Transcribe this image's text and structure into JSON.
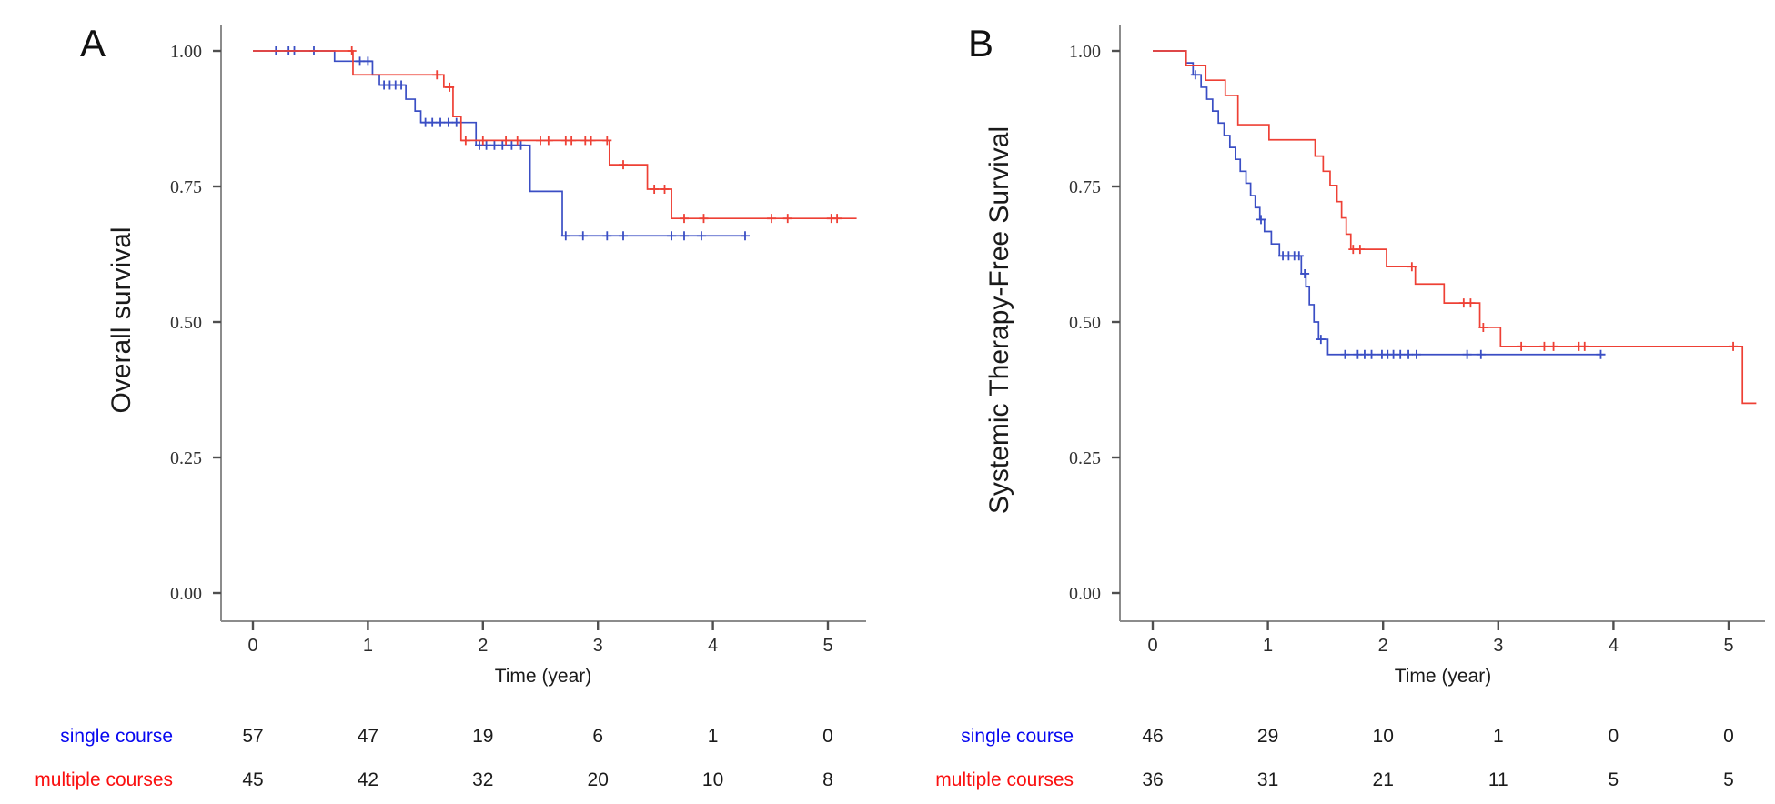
{
  "figure_colors": {
    "single_course_curve": "#3a4ec4",
    "multiple_courses_curve": "#ee4035",
    "single_course_label": "#0808f0",
    "multiple_courses_label": "#fa0f0f",
    "axis_line": "#8c8c8c",
    "tick_mark": "#4f4f4f"
  },
  "chart_data": [
    {
      "type": "line",
      "subtype": "kaplan-meier-step",
      "panel_label": "A",
      "ylabel": "Overall survival",
      "xlabel": "Time (year)",
      "xlim": [
        0,
        5.3
      ],
      "ylim": [
        0.0,
        1.0
      ],
      "x_ticks": [
        0,
        1,
        2,
        3,
        4,
        5
      ],
      "x_tick_labels": [
        "0",
        "1",
        "2",
        "3",
        "4",
        "5"
      ],
      "y_ticks": [
        1.0,
        0.75,
        0.5,
        0.25,
        0.0
      ],
      "y_tick_labels": [
        "1.00",
        "0.75",
        "0.50",
        "0.25",
        "0.00"
      ],
      "grid": false,
      "legend": "none",
      "series": [
        {
          "name": "single course",
          "color": "#3a4ec4",
          "steps": [
            [
              0,
              1.0
            ],
            [
              0.71,
              0.981
            ],
            [
              1.04,
              0.956
            ],
            [
              1.1,
              0.937
            ],
            [
              1.33,
              0.911
            ],
            [
              1.41,
              0.889
            ],
            [
              1.46,
              0.868
            ],
            [
              1.94,
              0.826
            ],
            [
              2.41,
              0.741
            ],
            [
              2.69,
              0.659
            ]
          ],
          "end_time": 4.28,
          "censors": [
            [
              0.2,
              1.0
            ],
            [
              0.31,
              1.0
            ],
            [
              0.36,
              1.0
            ],
            [
              0.53,
              1.0
            ],
            [
              0.93,
              0.981
            ],
            [
              1.0,
              0.981
            ],
            [
              1.14,
              0.937
            ],
            [
              1.19,
              0.937
            ],
            [
              1.24,
              0.937
            ],
            [
              1.29,
              0.937
            ],
            [
              1.5,
              0.868
            ],
            [
              1.56,
              0.868
            ],
            [
              1.63,
              0.868
            ],
            [
              1.7,
              0.868
            ],
            [
              1.77,
              0.868
            ],
            [
              1.97,
              0.826
            ],
            [
              2.03,
              0.826
            ],
            [
              2.1,
              0.826
            ],
            [
              2.17,
              0.826
            ],
            [
              2.25,
              0.826
            ],
            [
              2.33,
              0.826
            ],
            [
              2.72,
              0.659
            ],
            [
              2.87,
              0.659
            ],
            [
              3.08,
              0.659
            ],
            [
              3.22,
              0.659
            ],
            [
              3.64,
              0.659
            ],
            [
              3.75,
              0.659
            ],
            [
              3.9,
              0.659
            ],
            [
              4.28,
              0.659
            ]
          ]
        },
        {
          "name": "multiple courses",
          "color": "#ee4035",
          "steps": [
            [
              0,
              1.0
            ],
            [
              0.87,
              0.956
            ],
            [
              1.66,
              0.933
            ],
            [
              1.74,
              0.879
            ],
            [
              1.81,
              0.835
            ],
            [
              3.1,
              0.79
            ],
            [
              3.43,
              0.745
            ],
            [
              3.64,
              0.691
            ]
          ],
          "end_time": 5.25,
          "censors": [
            [
              0.86,
              1.0
            ],
            [
              1.6,
              0.956
            ],
            [
              1.71,
              0.933
            ],
            [
              1.85,
              0.835
            ],
            [
              2.0,
              0.835
            ],
            [
              2.2,
              0.835
            ],
            [
              2.3,
              0.835
            ],
            [
              2.5,
              0.835
            ],
            [
              2.57,
              0.835
            ],
            [
              2.72,
              0.835
            ],
            [
              2.77,
              0.835
            ],
            [
              2.89,
              0.835
            ],
            [
              2.94,
              0.835
            ],
            [
              3.08,
              0.835
            ],
            [
              3.22,
              0.79
            ],
            [
              3.49,
              0.745
            ],
            [
              3.58,
              0.745
            ],
            [
              3.75,
              0.691
            ],
            [
              3.92,
              0.691
            ],
            [
              4.51,
              0.691
            ],
            [
              4.65,
              0.691
            ],
            [
              5.03,
              0.691
            ],
            [
              5.08,
              0.691
            ]
          ]
        }
      ],
      "risk_table": {
        "rows": [
          {
            "label": "single course",
            "color": "#0808f0",
            "values": [
              "57",
              "47",
              "19",
              "6",
              "1",
              "0"
            ]
          },
          {
            "label": "multiple courses",
            "color": "#fa0f0f",
            "values": [
              "45",
              "42",
              "32",
              "20",
              "10",
              "8"
            ]
          }
        ]
      }
    },
    {
      "type": "line",
      "subtype": "kaplan-meier-step",
      "panel_label": "B",
      "ylabel": "Systemic Therapy-Free Survival",
      "xlabel": "Time (year)",
      "xlim": [
        0,
        5.3
      ],
      "ylim": [
        0.0,
        1.0
      ],
      "x_ticks": [
        0,
        1,
        2,
        3,
        4,
        5
      ],
      "x_tick_labels": [
        "0",
        "1",
        "2",
        "3",
        "4",
        "5"
      ],
      "y_ticks": [
        1.0,
        0.75,
        0.5,
        0.25,
        0.0
      ],
      "y_tick_labels": [
        "1.00",
        "0.75",
        "0.50",
        "0.25",
        "0.00"
      ],
      "grid": false,
      "legend": "none",
      "series": [
        {
          "name": "single course",
          "color": "#3a4ec4",
          "steps": [
            [
              0,
              1.0
            ],
            [
              0.29,
              0.978
            ],
            [
              0.35,
              0.956
            ],
            [
              0.42,
              0.933
            ],
            [
              0.47,
              0.911
            ],
            [
              0.52,
              0.889
            ],
            [
              0.57,
              0.867
            ],
            [
              0.62,
              0.844
            ],
            [
              0.67,
              0.822
            ],
            [
              0.72,
              0.8
            ],
            [
              0.76,
              0.778
            ],
            [
              0.81,
              0.756
            ],
            [
              0.85,
              0.733
            ],
            [
              0.89,
              0.711
            ],
            [
              0.93,
              0.689
            ],
            [
              0.97,
              0.667
            ],
            [
              1.03,
              0.644
            ],
            [
              1.1,
              0.622
            ],
            [
              1.29,
              0.589
            ],
            [
              1.33,
              0.565
            ],
            [
              1.36,
              0.532
            ],
            [
              1.4,
              0.5
            ],
            [
              1.44,
              0.468
            ],
            [
              1.52,
              0.44
            ]
          ],
          "end_time": 3.93,
          "censors": [
            [
              0.37,
              0.956
            ],
            [
              0.94,
              0.689
            ],
            [
              1.13,
              0.622
            ],
            [
              1.18,
              0.622
            ],
            [
              1.23,
              0.622
            ],
            [
              1.27,
              0.622
            ],
            [
              1.32,
              0.589
            ],
            [
              1.46,
              0.468
            ],
            [
              1.67,
              0.44
            ],
            [
              1.78,
              0.44
            ],
            [
              1.84,
              0.44
            ],
            [
              1.9,
              0.44
            ],
            [
              1.99,
              0.44
            ],
            [
              2.04,
              0.44
            ],
            [
              2.09,
              0.44
            ],
            [
              2.15,
              0.44
            ],
            [
              2.22,
              0.44
            ],
            [
              2.29,
              0.44
            ],
            [
              2.73,
              0.44
            ],
            [
              2.85,
              0.44
            ],
            [
              3.89,
              0.44
            ]
          ]
        },
        {
          "name": "multiple courses",
          "color": "#ee4035",
          "steps": [
            [
              0,
              1.0
            ],
            [
              0.29,
              0.973
            ],
            [
              0.46,
              0.946
            ],
            [
              0.63,
              0.918
            ],
            [
              0.74,
              0.864
            ],
            [
              1.01,
              0.836
            ],
            [
              1.41,
              0.806
            ],
            [
              1.48,
              0.778
            ],
            [
              1.54,
              0.752
            ],
            [
              1.6,
              0.722
            ],
            [
              1.64,
              0.692
            ],
            [
              1.68,
              0.662
            ],
            [
              1.72,
              0.634
            ],
            [
              2.03,
              0.602
            ],
            [
              2.28,
              0.57
            ],
            [
              2.53,
              0.535
            ],
            [
              2.84,
              0.49
            ],
            [
              3.02,
              0.455
            ],
            [
              5.12,
              0.35
            ]
          ],
          "end_time": 5.24,
          "censors": [
            [
              1.74,
              0.634
            ],
            [
              1.8,
              0.634
            ],
            [
              2.25,
              0.602
            ],
            [
              2.7,
              0.535
            ],
            [
              2.76,
              0.535
            ],
            [
              2.87,
              0.49
            ],
            [
              3.2,
              0.455
            ],
            [
              3.4,
              0.455
            ],
            [
              3.48,
              0.455
            ],
            [
              3.7,
              0.455
            ],
            [
              3.75,
              0.455
            ],
            [
              5.04,
              0.455
            ]
          ]
        }
      ],
      "risk_table": {
        "rows": [
          {
            "label": "single course",
            "color": "#0808f0",
            "values": [
              "46",
              "29",
              "10",
              "1",
              "0",
              "0"
            ]
          },
          {
            "label": "multiple courses",
            "color": "#fa0f0f",
            "values": [
              "36",
              "31",
              "21",
              "11",
              "5",
              "5"
            ]
          }
        ]
      }
    }
  ]
}
